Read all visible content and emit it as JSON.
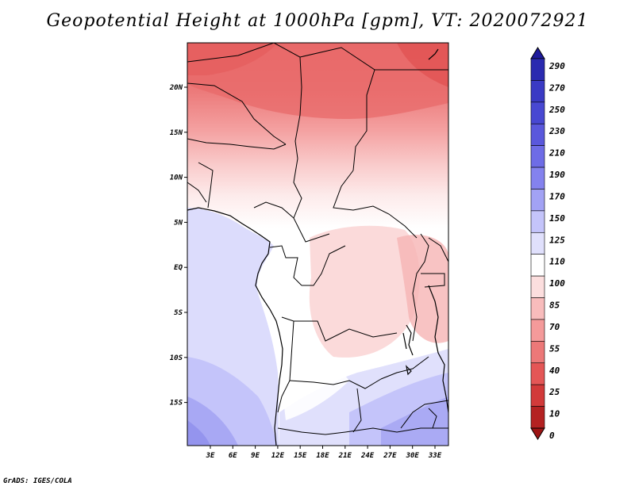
{
  "title": "Geopotential Height at 1000hPa [gpm], VT: 2020072921",
  "footer": "GrADS: IGES/COLA",
  "map": {
    "lon_labels": [
      "3E",
      "6E",
      "9E",
      "12E",
      "15E",
      "18E",
      "21E",
      "24E",
      "27E",
      "30E",
      "33E"
    ],
    "lat_labels": [
      "20N",
      "15N",
      "10N",
      "5N",
      "EQ",
      "5S",
      "10S",
      "15S"
    ]
  },
  "colorbar": {
    "labels": [
      "290",
      "270",
      "250",
      "230",
      "210",
      "190",
      "170",
      "150",
      "125",
      "110",
      "100",
      "85",
      "70",
      "55",
      "40",
      "25",
      "10",
      "0"
    ],
    "colors": [
      "#1e1a9c",
      "#2a2ab0",
      "#3a3ac4",
      "#4848d2",
      "#5a58dc",
      "#6e6ce6",
      "#8482ee",
      "#a2a2f4",
      "#c4c4fa",
      "#e0e0fc",
      "#ffffff",
      "#fcdede",
      "#f8bcbc",
      "#f49a9a",
      "#ec7878",
      "#e45656",
      "#d23a3a",
      "#b42222",
      "#9c1414"
    ]
  }
}
